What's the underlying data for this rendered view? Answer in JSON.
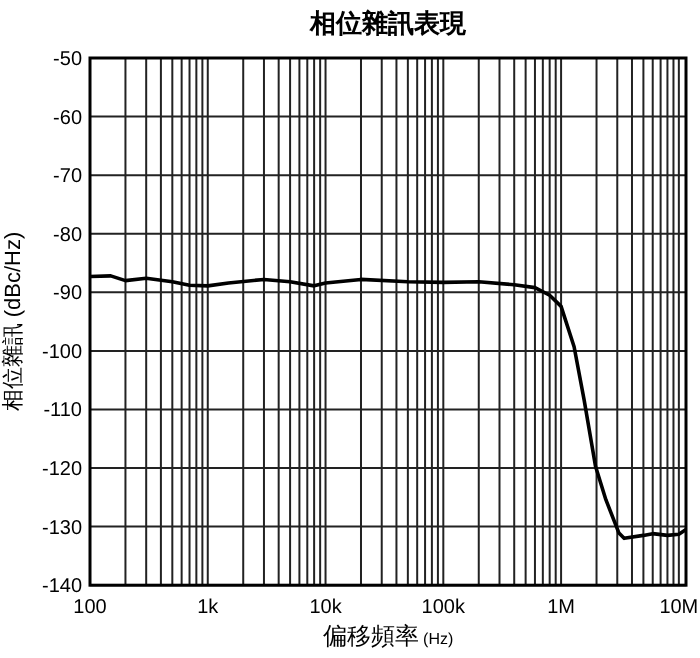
{
  "chart_data": {
    "type": "line",
    "title": "相位雜訊表現",
    "xlabel": "偏移頻率 (Hz)",
    "ylabel": "相位雜訊 (dBc/Hz)",
    "log": "x",
    "grid": true,
    "marker": "none",
    "line_style": "solid",
    "xlim": [
      100,
      11500000
    ],
    "ylim": [
      -140,
      -50
    ],
    "yticks": [
      -140,
      -130,
      -120,
      -110,
      -100,
      -90,
      -80,
      -70,
      -60,
      -50
    ],
    "xticks": [
      {
        "value": 100,
        "label": "100"
      },
      {
        "value": 200,
        "label": null
      },
      {
        "value": 300,
        "label": null
      },
      {
        "value": 400,
        "label": null
      },
      {
        "value": 500,
        "label": null
      },
      {
        "value": 600,
        "label": null
      },
      {
        "value": 700,
        "label": null
      },
      {
        "value": 800,
        "label": null
      },
      {
        "value": 900,
        "label": null
      },
      {
        "value": 1000,
        "label": "1k"
      },
      {
        "value": 2000,
        "label": null
      },
      {
        "value": 3000,
        "label": null
      },
      {
        "value": 4000,
        "label": null
      },
      {
        "value": 5000,
        "label": null
      },
      {
        "value": 6000,
        "label": null
      },
      {
        "value": 7000,
        "label": null
      },
      {
        "value": 8000,
        "label": null
      },
      {
        "value": 9000,
        "label": null
      },
      {
        "value": 10000,
        "label": "10k"
      },
      {
        "value": 20000,
        "label": null
      },
      {
        "value": 30000,
        "label": null
      },
      {
        "value": 40000,
        "label": null
      },
      {
        "value": 50000,
        "label": null
      },
      {
        "value": 60000,
        "label": null
      },
      {
        "value": 70000,
        "label": null
      },
      {
        "value": 80000,
        "label": null
      },
      {
        "value": 90000,
        "label": null
      },
      {
        "value": 100000,
        "label": "100k"
      },
      {
        "value": 200000,
        "label": null
      },
      {
        "value": 300000,
        "label": null
      },
      {
        "value": 400000,
        "label": null
      },
      {
        "value": 500000,
        "label": null
      },
      {
        "value": 600000,
        "label": null
      },
      {
        "value": 700000,
        "label": null
      },
      {
        "value": 800000,
        "label": null
      },
      {
        "value": 900000,
        "label": null
      },
      {
        "value": 1000000,
        "label": "1M"
      },
      {
        "value": 2000000,
        "label": null
      },
      {
        "value": 3000000,
        "label": null
      },
      {
        "value": 4000000,
        "label": null
      },
      {
        "value": 5000000,
        "label": null
      },
      {
        "value": 6000000,
        "label": null
      },
      {
        "value": 7000000,
        "label": null
      },
      {
        "value": 8000000,
        "label": null
      },
      {
        "value": 9000000,
        "label": null
      },
      {
        "value": 10000000,
        "label": "10M"
      }
    ],
    "series": [
      {
        "color": "#000000",
        "x": [
          100,
          150,
          200,
          300,
          500,
          700,
          1000,
          1500,
          3000,
          5000,
          8000,
          10000,
          20000,
          50000,
          100000,
          200000,
          400000,
          600000,
          800000,
          1000000,
          1290000,
          1570000,
          1960000,
          2400000,
          3100000,
          3430000,
          5000000,
          6000000,
          8000000,
          10000000,
          11500000
        ],
        "values": [
          -87.3,
          -87.2,
          -88,
          -87.6,
          -88.2,
          -88.8,
          -88.9,
          -88.4,
          -87.8,
          -88.2,
          -88.9,
          -88.4,
          -87.8,
          -88.2,
          -88.3,
          -88.2,
          -88.7,
          -89.2,
          -90.5,
          -92.4,
          -99.3,
          -108.4,
          -119.7,
          -125.4,
          -131.1,
          -132,
          -131.5,
          -131.2,
          -131.5,
          -131.3,
          -130.5
        ]
      }
    ]
  }
}
